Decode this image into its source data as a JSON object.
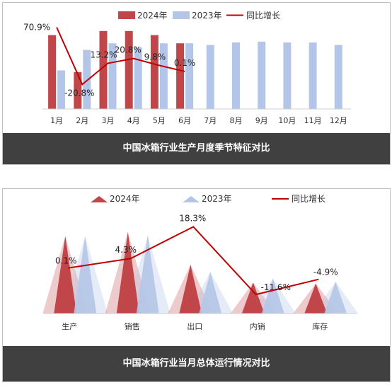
{
  "chart_data": [
    {
      "type": "bar",
      "title": "中国冰箱行业生产月度季节特征对比",
      "categories": [
        "1月",
        "2月",
        "3月",
        "4月",
        "5月",
        "6月",
        "7月",
        "8月",
        "9月",
        "10月",
        "11月",
        "12月"
      ],
      "series": [
        {
          "name": "2024年",
          "type": "bar",
          "color": "#c0464a",
          "values": [
            90,
            45,
            95,
            95,
            90,
            80,
            null,
            null,
            null,
            null,
            null,
            null
          ]
        },
        {
          "name": "2023年",
          "type": "bar",
          "color": "#b4c6e7",
          "values": [
            47,
            72,
            80,
            75,
            80,
            80,
            78,
            81,
            82,
            81,
            81,
            78
          ]
        },
        {
          "name": "同比增长",
          "type": "line",
          "color": "#c00000",
          "values": [
            70.9,
            -20.8,
            13.2,
            20.8,
            9.8,
            0.1,
            null,
            null,
            null,
            null,
            null,
            null
          ],
          "labels": [
            "70.9%",
            "-20.8%",
            "13.2%",
            "20.8%",
            "9.8%",
            "0.1%"
          ]
        }
      ],
      "legend_position": "top"
    },
    {
      "type": "bar",
      "title": "中国冰箱行业当月总体运行情况对比",
      "categories": [
        "生产",
        "销售",
        "出口",
        "内销",
        "库存"
      ],
      "series": [
        {
          "name": "2024年",
          "type": "triangle",
          "color": "#c0464a",
          "values": [
            95,
            100,
            60,
            38,
            37
          ]
        },
        {
          "name": "2023年",
          "type": "triangle",
          "color": "#b4c6e7",
          "values": [
            95,
            96,
            51,
            43,
            39
          ]
        },
        {
          "name": "同比增长",
          "type": "line",
          "color": "#c00000",
          "values": [
            0.1,
            4.3,
            18.3,
            -11.6,
            -4.9
          ],
          "labels": [
            "0.1%",
            "4.3%",
            "18.3%",
            "-11.6%",
            "-4.9%"
          ]
        }
      ],
      "legend_position": "top"
    }
  ]
}
